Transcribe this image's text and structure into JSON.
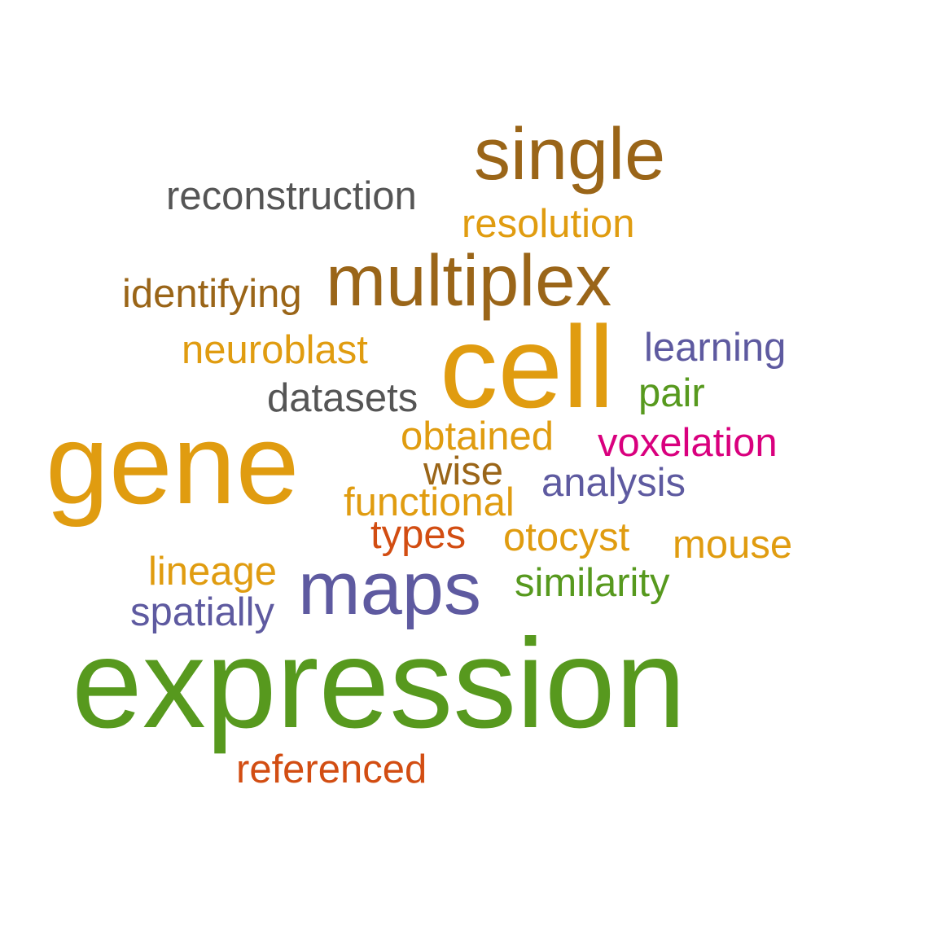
{
  "words": [
    {
      "text": "expression",
      "color": "#57991e"
    },
    {
      "text": "cell",
      "color": "#e09c10"
    },
    {
      "text": "gene",
      "color": "#e09c10"
    },
    {
      "text": "multiplex",
      "color": "#9a6518"
    },
    {
      "text": "maps",
      "color": "#5e5aa0"
    },
    {
      "text": "single",
      "color": "#9a6518"
    },
    {
      "text": "reconstruction",
      "color": "#555555"
    },
    {
      "text": "resolution",
      "color": "#e09c10"
    },
    {
      "text": "identifying",
      "color": "#9a6518"
    },
    {
      "text": "neuroblast",
      "color": "#e09c10"
    },
    {
      "text": "learning",
      "color": "#5e5aa0"
    },
    {
      "text": "datasets",
      "color": "#555555"
    },
    {
      "text": "pair",
      "color": "#57991e"
    },
    {
      "text": "obtained",
      "color": "#e09c10"
    },
    {
      "text": "voxelation",
      "color": "#d9007e"
    },
    {
      "text": "wise",
      "color": "#9a6518"
    },
    {
      "text": "analysis",
      "color": "#5e5aa0"
    },
    {
      "text": "functional",
      "color": "#e09c10"
    },
    {
      "text": "types",
      "color": "#d24d12"
    },
    {
      "text": "otocyst",
      "color": "#e09c10"
    },
    {
      "text": "mouse",
      "color": "#e09c10"
    },
    {
      "text": "lineage",
      "color": "#e09c10"
    },
    {
      "text": "similarity",
      "color": "#57991e"
    },
    {
      "text": "spatially",
      "color": "#5e5aa0"
    },
    {
      "text": "referenced",
      "color": "#d24d12"
    }
  ]
}
